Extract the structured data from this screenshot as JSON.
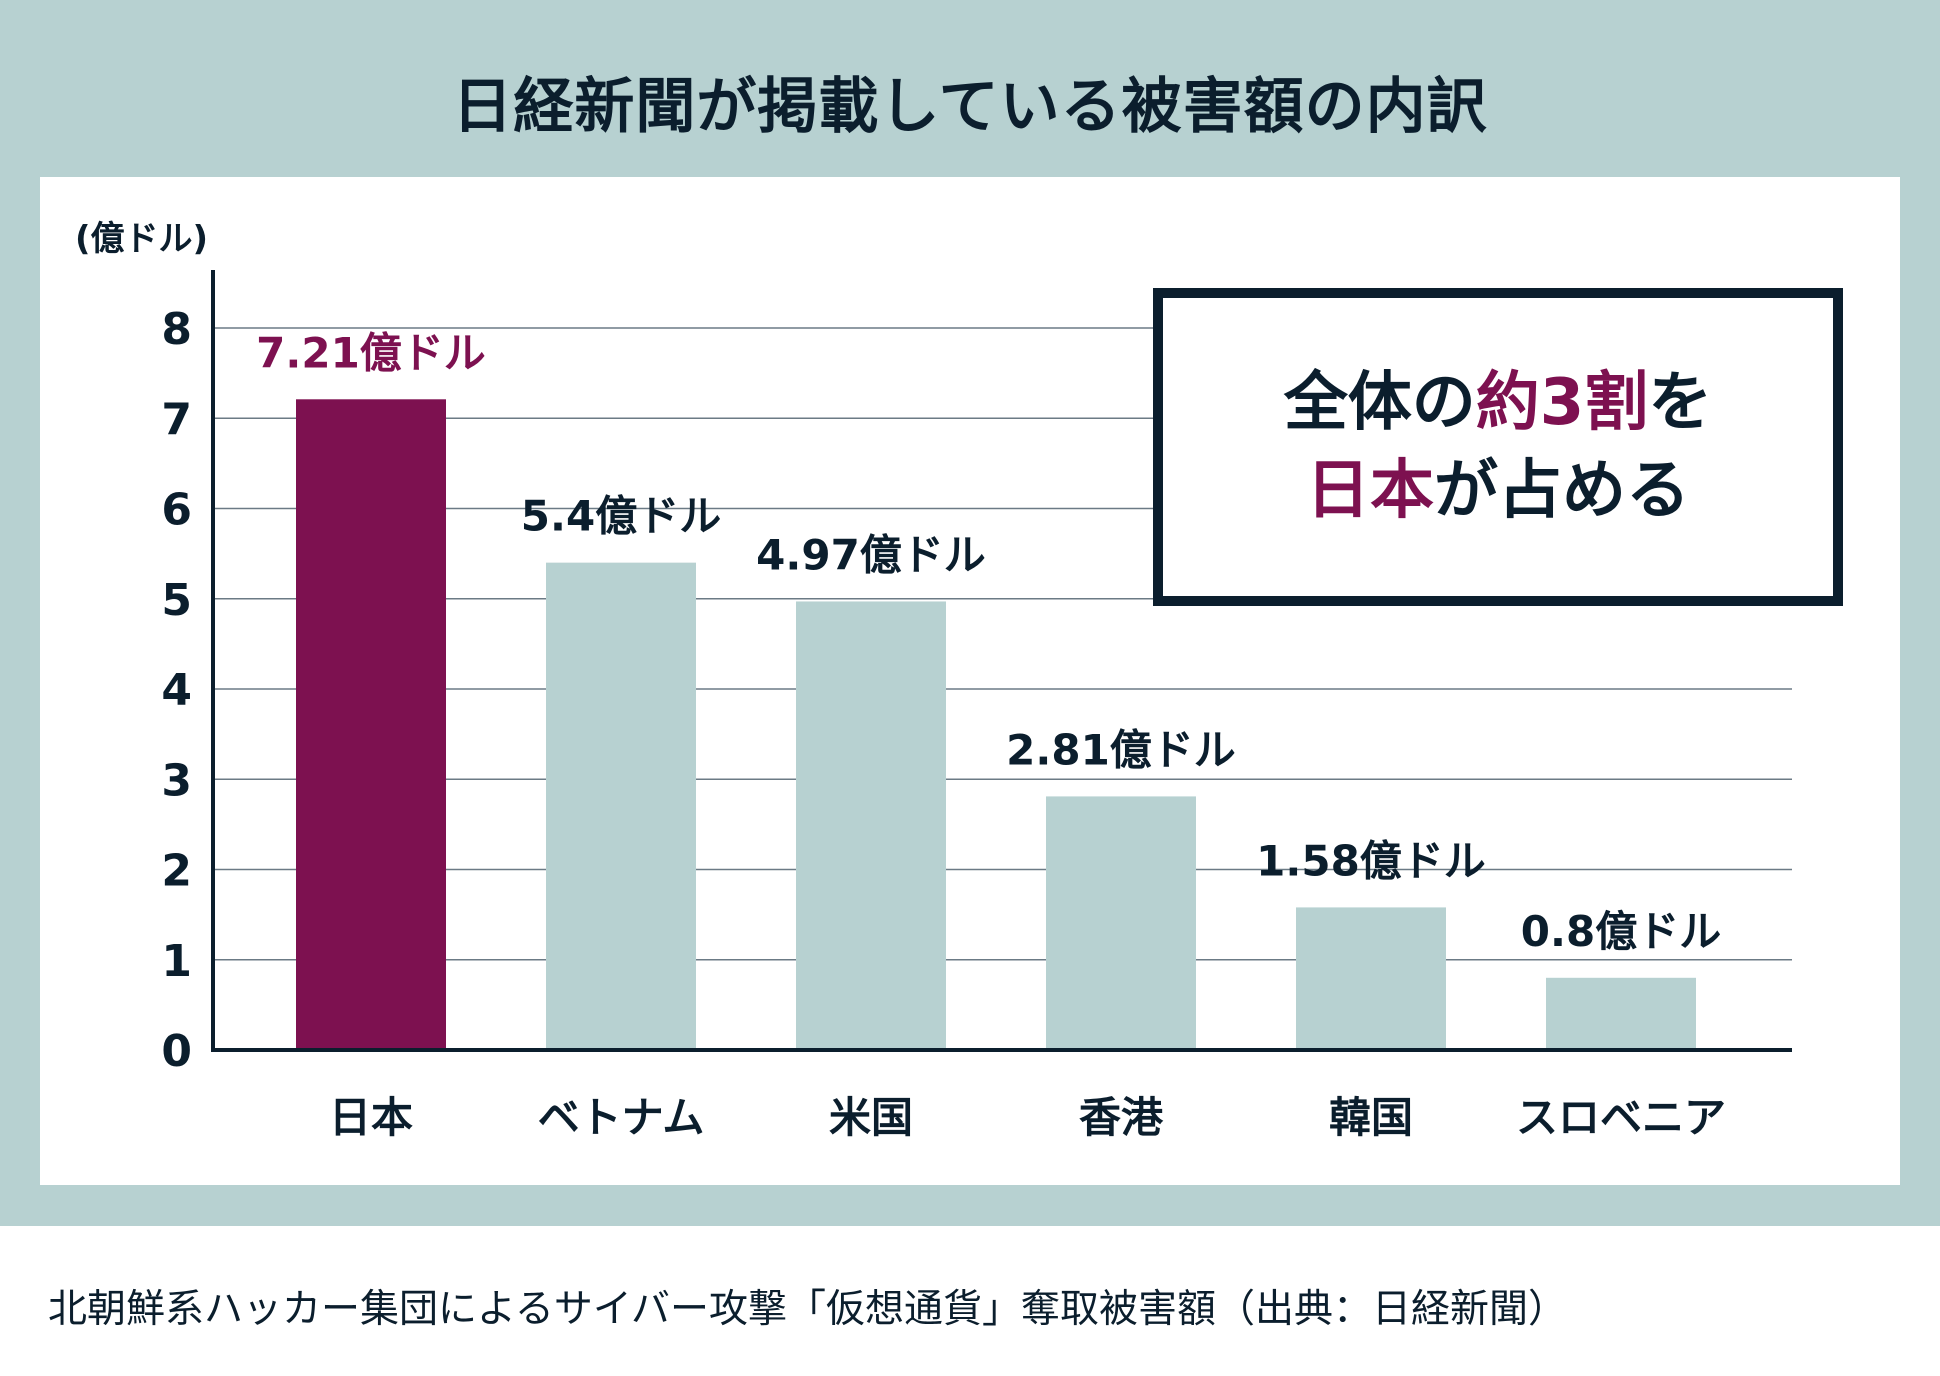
{
  "title": "日経新聞が掲載している被害額の内訳",
  "callout": {
    "line1_a": "全体の",
    "line1_b": "約3割",
    "line1_c": "を",
    "line2_a": "日本",
    "line2_b": "が占める"
  },
  "caption": "北朝鮮系ハッカー集団によるサイバー攻撃「仮想通貨」奪取被害額（出典：日経新聞）",
  "chart_data": {
    "type": "bar",
    "ylabel": "(億ドル)",
    "ylim": [
      0,
      8
    ],
    "yticks": [
      "0",
      "1",
      "2",
      "3",
      "4",
      "5",
      "6",
      "7",
      "8"
    ],
    "grid": true,
    "categories": [
      "日本",
      "ベトナム",
      "米国",
      "香港",
      "韓国",
      "スロベニア"
    ],
    "values": [
      7.21,
      5.4,
      4.97,
      2.81,
      1.58,
      0.8
    ],
    "data_labels": [
      "7.21億ドル",
      "5.4億ドル",
      "4.97億ドル",
      "2.81億ドル",
      "1.58億ドル",
      "0.8億ドル"
    ],
    "highlight_index": 0,
    "colors": {
      "highlight": "#7d1150",
      "bar": "#b7d1d1",
      "axis": "#0b1e2d",
      "grid": "#6b7a85"
    }
  }
}
